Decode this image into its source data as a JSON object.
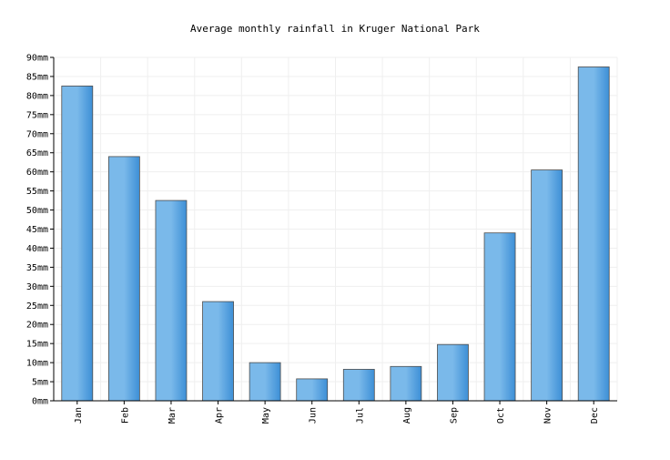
{
  "chart_data": {
    "type": "bar",
    "title": "Average monthly rainfall in Kruger National Park",
    "xlabel": "",
    "ylabel": "",
    "categories": [
      "Jan",
      "Feb",
      "Mar",
      "Apr",
      "May",
      "Jun",
      "Jul",
      "Aug",
      "Sep",
      "Oct",
      "Nov",
      "Dec"
    ],
    "values": [
      82.5,
      64,
      52.5,
      26,
      10,
      5.75,
      8.25,
      9,
      14.75,
      44,
      60.5,
      87.5
    ],
    "unit": "mm",
    "ylim": [
      0,
      90
    ],
    "yticks": [
      "0mm",
      "5mm",
      "10mm",
      "15mm",
      "20mm",
      "25mm",
      "30mm",
      "35mm",
      "40mm",
      "45mm",
      "50mm",
      "55mm",
      "60mm",
      "65mm",
      "70mm",
      "75mm",
      "80mm",
      "85mm",
      "90mm"
    ],
    "grid": true,
    "legend": "none",
    "colors": {
      "bar_dark": "#3d8fd6",
      "bar_light": "#7ab9ea",
      "bar_border": "#4d4d4d",
      "grid": "#efefef",
      "axis": "#000000"
    }
  }
}
